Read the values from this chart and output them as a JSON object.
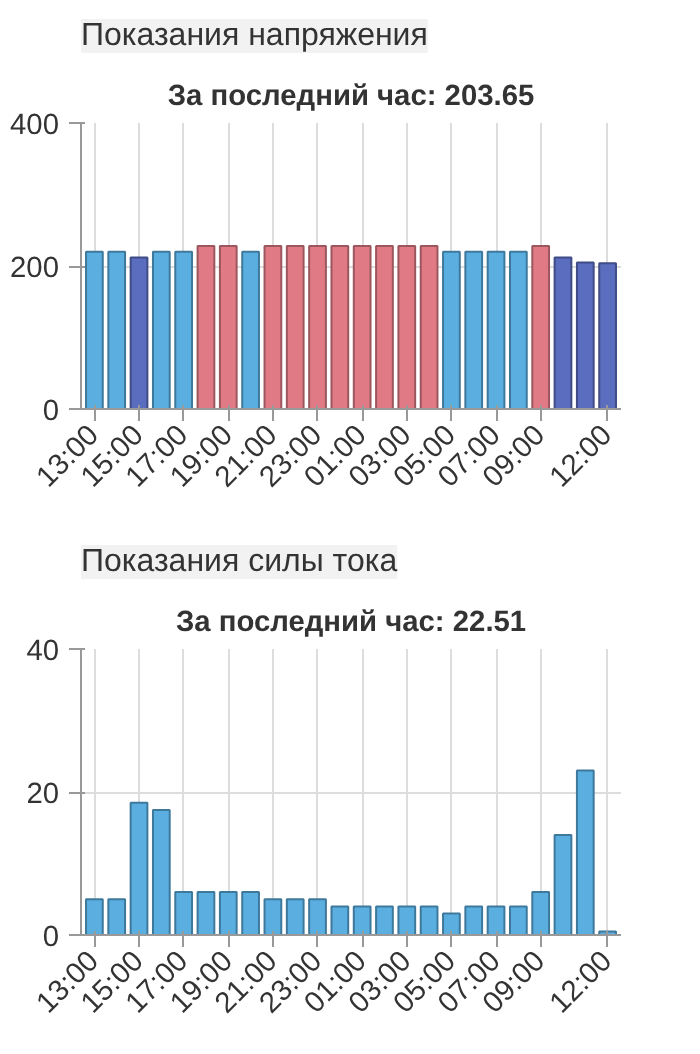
{
  "chart_data": [
    {
      "type": "bar",
      "title": "Показания напряжения",
      "subtitle": "За последний час: 203.65",
      "categories": [
        "13:00",
        null,
        "15:00",
        null,
        "17:00",
        null,
        "19:00",
        null,
        "21:00",
        null,
        "23:00",
        null,
        "01:00",
        null,
        "03:00",
        null,
        "05:00",
        null,
        "07:00",
        null,
        "09:00",
        null,
        null,
        "12:00"
      ],
      "values": [
        220,
        220,
        212,
        220,
        220,
        228,
        228,
        220,
        228,
        228,
        228,
        228,
        228,
        228,
        228,
        228,
        220,
        220,
        220,
        220,
        228,
        212,
        205,
        204
      ],
      "colors": [
        "#5aaee0",
        "#5aaee0",
        "#5b6dbf",
        "#5aaee0",
        "#5aaee0",
        "#e07b85",
        "#e07b85",
        "#5aaee0",
        "#e07b85",
        "#e07b85",
        "#e07b85",
        "#e07b85",
        "#e07b85",
        "#e07b85",
        "#e07b85",
        "#e07b85",
        "#5aaee0",
        "#5aaee0",
        "#5aaee0",
        "#5aaee0",
        "#e07b85",
        "#5b6dbf",
        "#5b6dbf",
        "#5b6dbf"
      ],
      "ylim": [
        0,
        400
      ],
      "yticks": [
        0,
        200,
        400
      ],
      "grid": true
    },
    {
      "type": "bar",
      "title": "Показания силы тока",
      "subtitle": "За последний час: 22.51",
      "categories": [
        "13:00",
        null,
        "15:00",
        null,
        "17:00",
        null,
        "19:00",
        null,
        "21:00",
        null,
        "23:00",
        null,
        "01:00",
        null,
        "03:00",
        null,
        "05:00",
        null,
        "07:00",
        null,
        "09:00",
        null,
        null,
        "12:00"
      ],
      "values": [
        5,
        5,
        18.5,
        17.5,
        6,
        6,
        6,
        6,
        5,
        5,
        5,
        4,
        4,
        4,
        4,
        4,
        3,
        4,
        4,
        4,
        6,
        14,
        23,
        0.5
      ],
      "color": "#5aaee0",
      "ylim": [
        0,
        40
      ],
      "yticks": [
        0,
        20,
        40
      ],
      "grid": true
    }
  ]
}
